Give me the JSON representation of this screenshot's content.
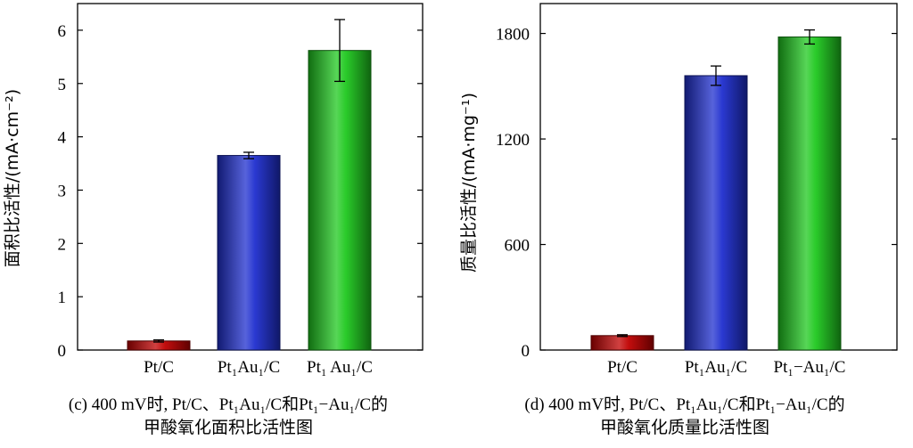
{
  "chart_data": [
    {
      "type": "bar",
      "panel": "c",
      "categories": [
        "Pt/C",
        "Pt₁Au₁/C",
        "Pt₁ Au₁/C"
      ],
      "values": [
        0.17,
        3.65,
        5.62
      ],
      "errors": [
        0.02,
        0.06,
        0.58
      ],
      "colors": [
        "#c00000",
        "#1f2fcf",
        "#1fc81f"
      ],
      "xlabel": "",
      "ylabel": "面积比活性/(mA·cm⁻²)",
      "ylim": [
        0,
        6.5
      ],
      "yticks": [
        0,
        1,
        2,
        3,
        4,
        5,
        6
      ],
      "ytick_labels": [
        "0",
        "1",
        "2",
        "3",
        "4",
        "5",
        "6"
      ],
      "grid": false,
      "caption_line1": "(c) 400 mV时, Pt/C、Pt₁Au₁/C和Pt₁−Au₁/C的",
      "caption_line2": "甲酸氧化面积比活性图"
    },
    {
      "type": "bar",
      "panel": "d",
      "categories": [
        "Pt/C",
        "Pt₁Au₁/C",
        "Pt₁−Au₁/C"
      ],
      "values": [
        82,
        1560,
        1780
      ],
      "errors": [
        5,
        55,
        40
      ],
      "colors": [
        "#c00000",
        "#1f2fcf",
        "#1fc81f"
      ],
      "xlabel": "",
      "ylabel": "质量比活性/(mA·mg⁻¹)",
      "ylim": [
        0,
        1970
      ],
      "yticks": [
        0,
        600,
        1200,
        1800
      ],
      "ytick_labels": [
        "0",
        "600",
        "1200",
        "1800"
      ],
      "grid": false,
      "caption_line1": "(d) 400 mV时, Pt/C、Pt₁Au₁/C和Pt₁−Au₁/C的",
      "caption_line2": "甲酸氧化质量比活性图"
    }
  ]
}
